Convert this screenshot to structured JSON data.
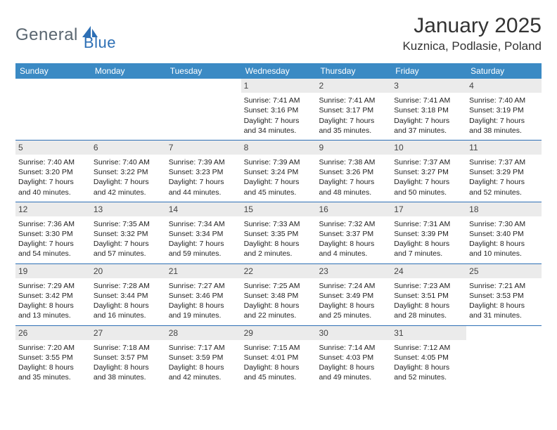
{
  "brand": {
    "name_a": "General",
    "name_b": "Blue"
  },
  "title": "January 2025",
  "location": "Kuznica, Podlasie, Poland",
  "colors": {
    "header_bg": "#3b8ac4",
    "week_divider": "#2d6fb5",
    "daynum_bg": "#ebebeb",
    "text": "#222222",
    "logo_gray": "#5a6670",
    "logo_blue": "#2d6fb5"
  },
  "weekdays": [
    "Sunday",
    "Monday",
    "Tuesday",
    "Wednesday",
    "Thursday",
    "Friday",
    "Saturday"
  ],
  "weeks": [
    [
      null,
      null,
      null,
      {
        "n": "1",
        "sr": "7:41 AM",
        "ss": "3:16 PM",
        "dl": "7 hours and 34 minutes."
      },
      {
        "n": "2",
        "sr": "7:41 AM",
        "ss": "3:17 PM",
        "dl": "7 hours and 35 minutes."
      },
      {
        "n": "3",
        "sr": "7:41 AM",
        "ss": "3:18 PM",
        "dl": "7 hours and 37 minutes."
      },
      {
        "n": "4",
        "sr": "7:40 AM",
        "ss": "3:19 PM",
        "dl": "7 hours and 38 minutes."
      }
    ],
    [
      {
        "n": "5",
        "sr": "7:40 AM",
        "ss": "3:20 PM",
        "dl": "7 hours and 40 minutes."
      },
      {
        "n": "6",
        "sr": "7:40 AM",
        "ss": "3:22 PM",
        "dl": "7 hours and 42 minutes."
      },
      {
        "n": "7",
        "sr": "7:39 AM",
        "ss": "3:23 PM",
        "dl": "7 hours and 44 minutes."
      },
      {
        "n": "8",
        "sr": "7:39 AM",
        "ss": "3:24 PM",
        "dl": "7 hours and 45 minutes."
      },
      {
        "n": "9",
        "sr": "7:38 AM",
        "ss": "3:26 PM",
        "dl": "7 hours and 48 minutes."
      },
      {
        "n": "10",
        "sr": "7:37 AM",
        "ss": "3:27 PM",
        "dl": "7 hours and 50 minutes."
      },
      {
        "n": "11",
        "sr": "7:37 AM",
        "ss": "3:29 PM",
        "dl": "7 hours and 52 minutes."
      }
    ],
    [
      {
        "n": "12",
        "sr": "7:36 AM",
        "ss": "3:30 PM",
        "dl": "7 hours and 54 minutes."
      },
      {
        "n": "13",
        "sr": "7:35 AM",
        "ss": "3:32 PM",
        "dl": "7 hours and 57 minutes."
      },
      {
        "n": "14",
        "sr": "7:34 AM",
        "ss": "3:34 PM",
        "dl": "7 hours and 59 minutes."
      },
      {
        "n": "15",
        "sr": "7:33 AM",
        "ss": "3:35 PM",
        "dl": "8 hours and 2 minutes."
      },
      {
        "n": "16",
        "sr": "7:32 AM",
        "ss": "3:37 PM",
        "dl": "8 hours and 4 minutes."
      },
      {
        "n": "17",
        "sr": "7:31 AM",
        "ss": "3:39 PM",
        "dl": "8 hours and 7 minutes."
      },
      {
        "n": "18",
        "sr": "7:30 AM",
        "ss": "3:40 PM",
        "dl": "8 hours and 10 minutes."
      }
    ],
    [
      {
        "n": "19",
        "sr": "7:29 AM",
        "ss": "3:42 PM",
        "dl": "8 hours and 13 minutes."
      },
      {
        "n": "20",
        "sr": "7:28 AM",
        "ss": "3:44 PM",
        "dl": "8 hours and 16 minutes."
      },
      {
        "n": "21",
        "sr": "7:27 AM",
        "ss": "3:46 PM",
        "dl": "8 hours and 19 minutes."
      },
      {
        "n": "22",
        "sr": "7:25 AM",
        "ss": "3:48 PM",
        "dl": "8 hours and 22 minutes."
      },
      {
        "n": "23",
        "sr": "7:24 AM",
        "ss": "3:49 PM",
        "dl": "8 hours and 25 minutes."
      },
      {
        "n": "24",
        "sr": "7:23 AM",
        "ss": "3:51 PM",
        "dl": "8 hours and 28 minutes."
      },
      {
        "n": "25",
        "sr": "7:21 AM",
        "ss": "3:53 PM",
        "dl": "8 hours and 31 minutes."
      }
    ],
    [
      {
        "n": "26",
        "sr": "7:20 AM",
        "ss": "3:55 PM",
        "dl": "8 hours and 35 minutes."
      },
      {
        "n": "27",
        "sr": "7:18 AM",
        "ss": "3:57 PM",
        "dl": "8 hours and 38 minutes."
      },
      {
        "n": "28",
        "sr": "7:17 AM",
        "ss": "3:59 PM",
        "dl": "8 hours and 42 minutes."
      },
      {
        "n": "29",
        "sr": "7:15 AM",
        "ss": "4:01 PM",
        "dl": "8 hours and 45 minutes."
      },
      {
        "n": "30",
        "sr": "7:14 AM",
        "ss": "4:03 PM",
        "dl": "8 hours and 49 minutes."
      },
      {
        "n": "31",
        "sr": "7:12 AM",
        "ss": "4:05 PM",
        "dl": "8 hours and 52 minutes."
      },
      null
    ]
  ],
  "labels": {
    "sunrise": "Sunrise:",
    "sunset": "Sunset:",
    "daylight": "Daylight:"
  }
}
